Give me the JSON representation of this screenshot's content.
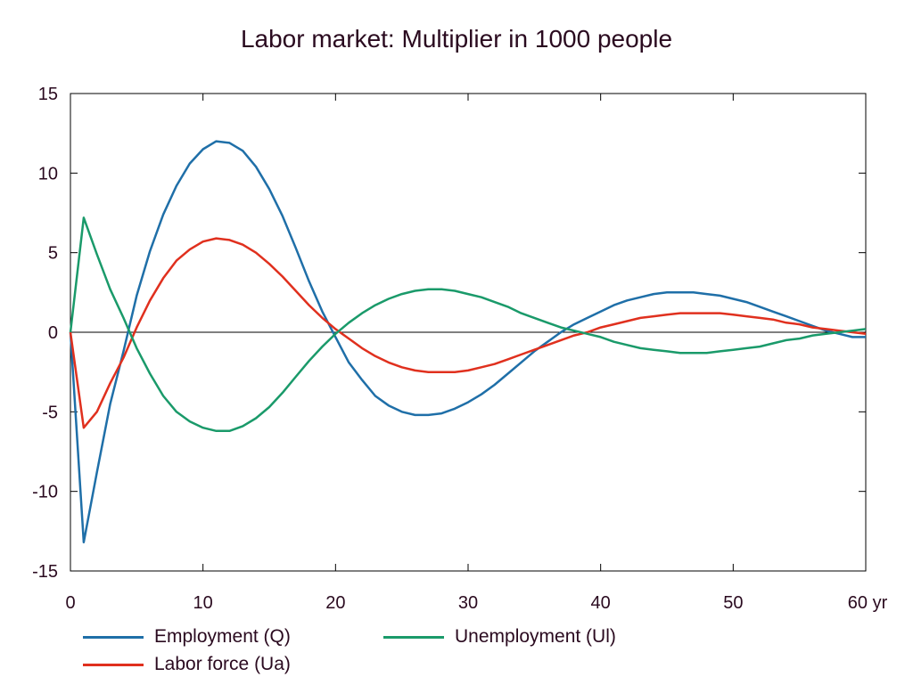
{
  "chart_data": {
    "type": "line",
    "title": "Labor market: Multiplier in 1000 people",
    "xlabel": "",
    "ylabel": "",
    "xlim": [
      0,
      60
    ],
    "ylim": [
      -15,
      15
    ],
    "x_ticks": [
      {
        "value": 0,
        "label": "0"
      },
      {
        "value": 10,
        "label": "10"
      },
      {
        "value": 20,
        "label": "20"
      },
      {
        "value": 30,
        "label": "30"
      },
      {
        "value": 40,
        "label": "40"
      },
      {
        "value": 50,
        "label": "50"
      },
      {
        "value": 60,
        "label": "60 yr"
      }
    ],
    "y_ticks": [
      {
        "value": 15,
        "label": "15"
      },
      {
        "value": 10,
        "label": "10"
      },
      {
        "value": 5,
        "label": "5"
      },
      {
        "value": 0,
        "label": "0"
      },
      {
        "value": -5,
        "label": "-5"
      },
      {
        "value": -10,
        "label": "-10"
      },
      {
        "value": -15,
        "label": "-15"
      }
    ],
    "grid": false,
    "legend_position": "bottom",
    "series": [
      {
        "name": "Employment (Q)",
        "color": "#1f6fa8",
        "x": [
          0,
          1,
          2,
          3,
          4,
          5,
          6,
          7,
          8,
          9,
          10,
          11,
          12,
          13,
          14,
          15,
          16,
          17,
          18,
          19,
          20,
          21,
          22,
          23,
          24,
          25,
          26,
          27,
          28,
          29,
          30,
          31,
          32,
          33,
          34,
          35,
          36,
          37,
          38,
          39,
          40,
          41,
          42,
          43,
          44,
          45,
          46,
          47,
          48,
          49,
          50,
          51,
          52,
          53,
          54,
          55,
          56,
          57,
          58,
          59,
          60
        ],
        "values": [
          0,
          -13.2,
          -8.8,
          -4.5,
          -1.2,
          2.3,
          5.1,
          7.4,
          9.2,
          10.6,
          11.5,
          12.0,
          11.9,
          11.4,
          10.4,
          9.0,
          7.3,
          5.3,
          3.2,
          1.3,
          -0.3,
          -1.9,
          -3.0,
          -4.0,
          -4.6,
          -5.0,
          -5.2,
          -5.2,
          -5.1,
          -4.8,
          -4.4,
          -3.9,
          -3.3,
          -2.6,
          -1.9,
          -1.2,
          -0.6,
          0.0,
          0.5,
          0.9,
          1.3,
          1.7,
          2.0,
          2.2,
          2.4,
          2.5,
          2.5,
          2.5,
          2.4,
          2.3,
          2.1,
          1.9,
          1.6,
          1.3,
          1.0,
          0.7,
          0.4,
          0.1,
          -0.1,
          -0.3,
          -0.3
        ]
      },
      {
        "name": "Labor force (Ua)",
        "color": "#e0301e",
        "x": [
          0,
          1,
          2,
          3,
          4,
          5,
          6,
          7,
          8,
          9,
          10,
          11,
          12,
          13,
          14,
          15,
          16,
          17,
          18,
          19,
          20,
          21,
          22,
          23,
          24,
          25,
          26,
          27,
          28,
          29,
          30,
          31,
          32,
          33,
          34,
          35,
          36,
          37,
          38,
          39,
          40,
          41,
          42,
          43,
          44,
          45,
          46,
          47,
          48,
          49,
          50,
          51,
          52,
          53,
          54,
          55,
          56,
          57,
          58,
          59,
          60
        ],
        "values": [
          0,
          -6.0,
          -5.0,
          -3.2,
          -1.6,
          0.3,
          2.0,
          3.4,
          4.5,
          5.2,
          5.7,
          5.9,
          5.8,
          5.5,
          5.0,
          4.3,
          3.5,
          2.6,
          1.7,
          0.9,
          0.2,
          -0.4,
          -1.0,
          -1.5,
          -1.9,
          -2.2,
          -2.4,
          -2.5,
          -2.5,
          -2.5,
          -2.4,
          -2.2,
          -2.0,
          -1.7,
          -1.4,
          -1.1,
          -0.8,
          -0.5,
          -0.2,
          0.0,
          0.3,
          0.5,
          0.7,
          0.9,
          1.0,
          1.1,
          1.2,
          1.2,
          1.2,
          1.2,
          1.1,
          1.0,
          0.9,
          0.8,
          0.6,
          0.5,
          0.3,
          0.2,
          0.1,
          0.0,
          -0.1
        ]
      },
      {
        "name": "Unemployment (Ul)",
        "color": "#1a9a6a",
        "x": [
          0,
          1,
          2,
          3,
          4,
          5,
          6,
          7,
          8,
          9,
          10,
          11,
          12,
          13,
          14,
          15,
          16,
          17,
          18,
          19,
          20,
          21,
          22,
          23,
          24,
          25,
          26,
          27,
          28,
          29,
          30,
          31,
          32,
          33,
          34,
          35,
          36,
          37,
          38,
          39,
          40,
          41,
          42,
          43,
          44,
          45,
          46,
          47,
          48,
          49,
          50,
          51,
          52,
          53,
          54,
          55,
          56,
          57,
          58,
          59,
          60
        ],
        "values": [
          0,
          7.2,
          4.9,
          2.7,
          0.9,
          -1.0,
          -2.6,
          -4.0,
          -5.0,
          -5.6,
          -6.0,
          -6.2,
          -6.2,
          -5.9,
          -5.4,
          -4.7,
          -3.8,
          -2.8,
          -1.8,
          -0.9,
          -0.1,
          0.6,
          1.2,
          1.7,
          2.1,
          2.4,
          2.6,
          2.7,
          2.7,
          2.6,
          2.4,
          2.2,
          1.9,
          1.6,
          1.2,
          0.9,
          0.6,
          0.3,
          0.1,
          -0.1,
          -0.3,
          -0.6,
          -0.8,
          -1.0,
          -1.1,
          -1.2,
          -1.3,
          -1.3,
          -1.3,
          -1.2,
          -1.1,
          -1.0,
          -0.9,
          -0.7,
          -0.5,
          -0.4,
          -0.2,
          -0.1,
          0.0,
          0.1,
          0.2
        ]
      }
    ]
  }
}
